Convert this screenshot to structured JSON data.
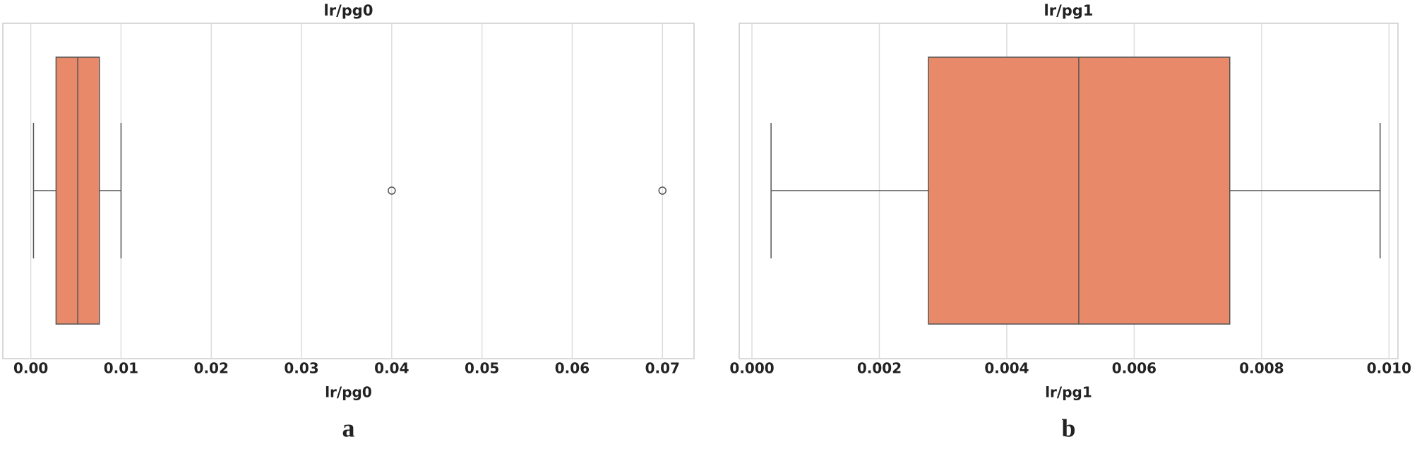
{
  "chart_data": [
    {
      "type": "box",
      "title": "lr/pg0",
      "xlabel": "lr/pg0",
      "panel_label": "a",
      "xlim": [
        -0.0031,
        0.0735
      ],
      "xticks": [
        {
          "value": 0,
          "label": "0.00"
        },
        {
          "value": 0.01,
          "label": "0.01"
        },
        {
          "value": 0.02,
          "label": "0.02"
        },
        {
          "value": 0.03,
          "label": "0.03"
        },
        {
          "value": 0.04,
          "label": "0.04"
        },
        {
          "value": 0.05,
          "label": "0.05"
        },
        {
          "value": 0.06,
          "label": "0.06"
        },
        {
          "value": 0.07,
          "label": "0.07"
        }
      ],
      "grid": true,
      "color": "#e8896a",
      "edge_color": "#555555",
      "box": {
        "min": 0.0003,
        "q1": 0.0028,
        "median": 0.0052,
        "q3": 0.0076,
        "max": 0.01,
        "outliers": [
          0.04,
          0.07
        ]
      }
    },
    {
      "type": "box",
      "title": "lr/pg1",
      "xlabel": "lr/pg1",
      "panel_label": "b",
      "xlim": [
        -0.0002,
        0.01014
      ],
      "xticks": [
        {
          "value": 0,
          "label": "0.000"
        },
        {
          "value": 0.002,
          "label": "0.002"
        },
        {
          "value": 0.004,
          "label": "0.004"
        },
        {
          "value": 0.006,
          "label": "0.006"
        },
        {
          "value": 0.008,
          "label": "0.008"
        },
        {
          "value": 0.01,
          "label": "0.010"
        }
      ],
      "grid": true,
      "color": "#e8896a",
      "edge_color": "#555555",
      "box": {
        "min": 0.0003,
        "q1": 0.00277,
        "median": 0.00513,
        "q3": 0.0075,
        "max": 0.00986,
        "outliers": []
      }
    }
  ]
}
